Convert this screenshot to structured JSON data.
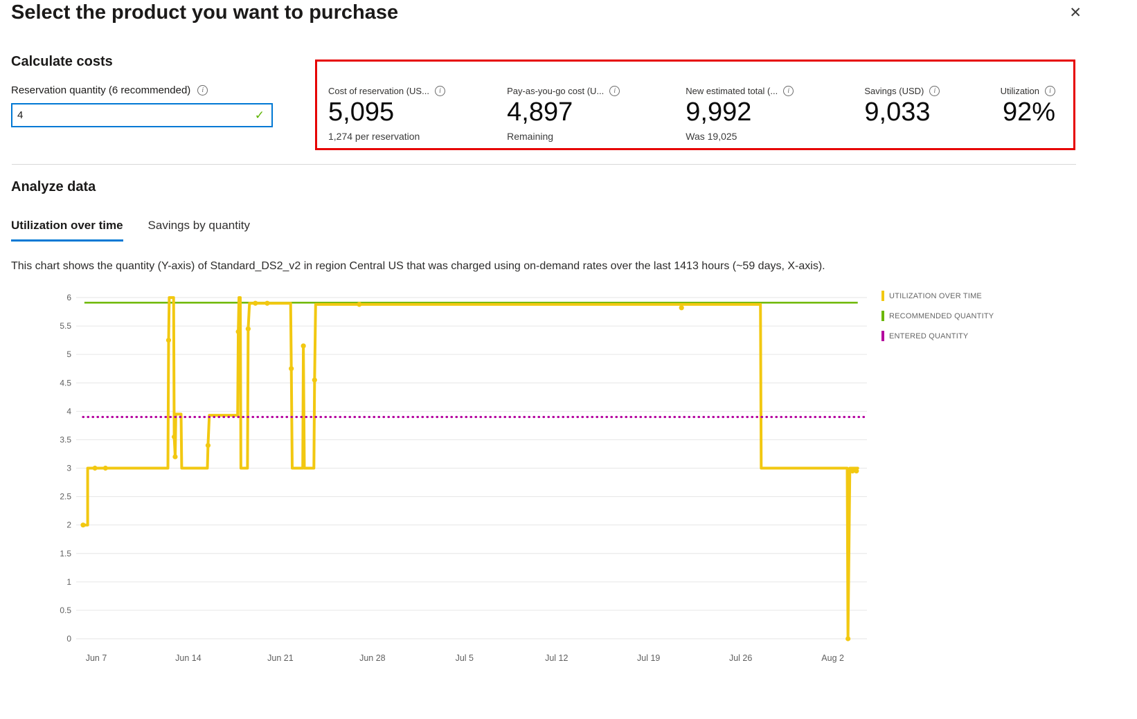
{
  "colors": {
    "accent": "#0078d4",
    "alert": "#e60000",
    "check": "#5db300"
  },
  "icons": {
    "close": "✕",
    "info": "i",
    "check": "✓"
  },
  "header": {
    "title": "Select the product you want to purchase"
  },
  "calculate_costs": {
    "heading": "Calculate costs",
    "quantity_label": "Reservation quantity (6 recommended)",
    "quantity_value": "4",
    "metrics": [
      {
        "label": "Cost of reservation (US...",
        "value": "5,095",
        "sub": "1,274 per reservation"
      },
      {
        "label": "Pay-as-you-go cost (U...",
        "value": "4,897",
        "sub": "Remaining"
      },
      {
        "label": "New estimated total (...",
        "value": "9,992",
        "sub": "Was 19,025"
      },
      {
        "label": "Savings (USD)",
        "value": "9,033",
        "sub": ""
      },
      {
        "label": "Utilization",
        "value": "92%",
        "sub": ""
      }
    ]
  },
  "analyze": {
    "heading": "Analyze data",
    "tabs": [
      {
        "label": "Utilization over time",
        "active": true
      },
      {
        "label": "Savings by quantity",
        "active": false
      }
    ],
    "description": "This chart shows the quantity (Y-axis) of Standard_DS2_v2 in region Central US that was charged using on-demand rates over the last 1413 hours (~59 days, X-axis)."
  },
  "chart_data": {
    "type": "line",
    "title": "",
    "xlabel": "",
    "ylabel": "",
    "xlim": [
      0,
      59.6
    ],
    "ylim": [
      0,
      6
    ],
    "grid": true,
    "legend_position": "right",
    "y_ticks": [
      6,
      5.5,
      5,
      4.5,
      4,
      3.5,
      3,
      2.5,
      2,
      1.5,
      1,
      0.5,
      0
    ],
    "x_ticks": [
      {
        "day": 1,
        "label": "Jun 7"
      },
      {
        "day": 8,
        "label": "Jun 14"
      },
      {
        "day": 15,
        "label": "Jun 21"
      },
      {
        "day": 22,
        "label": "Jun 28"
      },
      {
        "day": 29,
        "label": "Jul 5"
      },
      {
        "day": 36,
        "label": "Jul 12"
      },
      {
        "day": 43,
        "label": "Jul 19"
      },
      {
        "day": 50,
        "label": "Jul 26"
      },
      {
        "day": 57,
        "label": "Aug 2"
      }
    ],
    "series": [
      {
        "name": "UTILIZATION OVER TIME",
        "color": "#f2c811",
        "kind": "step",
        "width": 4,
        "points": [
          [
            0,
            2
          ],
          [
            0.35,
            2
          ],
          [
            0.35,
            3
          ],
          [
            6.45,
            3
          ],
          [
            6.5,
            5.25
          ],
          [
            6.55,
            6
          ],
          [
            6.88,
            6
          ],
          [
            6.93,
            3.55
          ],
          [
            7.0,
            3.2
          ],
          [
            7.05,
            3.95
          ],
          [
            7.45,
            3.95
          ],
          [
            7.5,
            3
          ],
          [
            9.45,
            3
          ],
          [
            9.5,
            3.4
          ],
          [
            9.6,
            3.93
          ],
          [
            11.75,
            3.93
          ],
          [
            11.8,
            5.4
          ],
          [
            11.85,
            6
          ],
          [
            11.95,
            6
          ],
          [
            12.0,
            3
          ],
          [
            12.5,
            3
          ],
          [
            12.55,
            5.45
          ],
          [
            12.65,
            5.9
          ],
          [
            15.78,
            5.9
          ],
          [
            15.83,
            4.75
          ],
          [
            15.9,
            3
          ],
          [
            16.7,
            3
          ],
          [
            16.75,
            5.15
          ],
          [
            16.82,
            3
          ],
          [
            17.55,
            3
          ],
          [
            17.6,
            4.55
          ],
          [
            17.68,
            5.88
          ],
          [
            51.5,
            5.88
          ],
          [
            51.56,
            3
          ],
          [
            58.1,
            3
          ],
          [
            58.16,
            0
          ],
          [
            58.3,
            3
          ],
          [
            58.9,
            3
          ]
        ],
        "markers": [
          [
            0,
            2
          ],
          [
            0.9,
            3
          ],
          [
            1.7,
            3
          ],
          [
            6.5,
            5.25
          ],
          [
            6.93,
            3.55
          ],
          [
            7.0,
            3.2
          ],
          [
            9.5,
            3.4
          ],
          [
            11.8,
            5.4
          ],
          [
            12.55,
            5.45
          ],
          [
            13.1,
            5.9
          ],
          [
            14.0,
            5.9
          ],
          [
            15.83,
            4.75
          ],
          [
            16.75,
            5.15
          ],
          [
            17.6,
            4.55
          ],
          [
            21.0,
            5.88
          ],
          [
            45.5,
            5.82
          ],
          [
            58.16,
            0
          ],
          [
            58.5,
            2.95
          ],
          [
            58.8,
            2.95
          ]
        ]
      },
      {
        "name": "RECOMMENDED QUANTITY",
        "color": "#6bb700",
        "kind": "hline",
        "width": 2.5,
        "y": 5.91,
        "span": [
          0.1,
          58.9
        ],
        "represents": 6
      },
      {
        "name": "ENTERED QUANTITY",
        "color": "#b4009e",
        "kind": "hline-dotted",
        "width": 3.2,
        "y": 3.9,
        "span": [
          0,
          59.4
        ],
        "represents": 4
      }
    ]
  }
}
